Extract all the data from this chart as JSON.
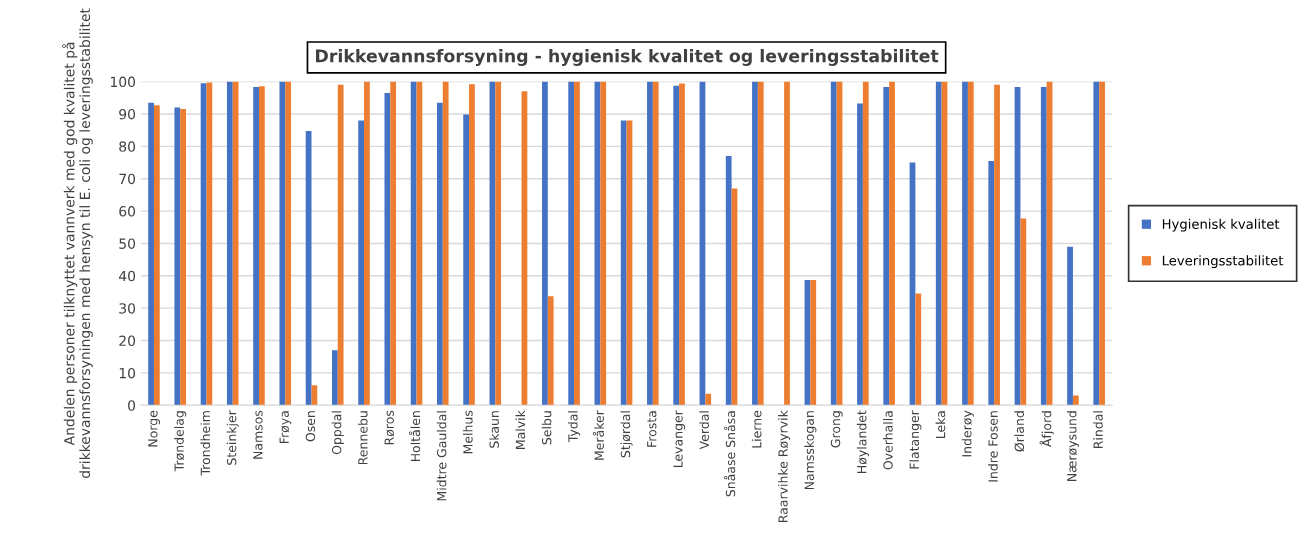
{
  "chart_data": {
    "type": "bar",
    "title": "Drikkevannsforsyning - hygienisk kvalitet og leveringsstabilitet",
    "ylabel": "Andelen personer tilknyttet vannverk med god kvalitet på drikkevannsforsyningen med hensyn til E. coli og leveringsstabilitet",
    "categories": [
      "Norge",
      "Trøndelag",
      "Trondheim",
      "Steinkjer",
      "Namsos",
      "Frøya",
      "Osen",
      "Oppdal",
      "Rennebu",
      "Røros",
      "Holtålen",
      "Midtre Gauldal",
      "Melhus",
      "Skaun",
      "Malvik",
      "Selbu",
      "Tydal",
      "Meråker",
      "Stjørdal",
      "Frosta",
      "Levanger",
      "Verdal",
      "Snåase Snåsa",
      "Lierne",
      "Raarvihke Røyrvik",
      "Namsskogan",
      "Grong",
      "Høylandet",
      "Overhalla",
      "Flatanger",
      "Leka",
      "Inderøy",
      "Indre Fosen",
      "Ørland",
      "Åfjord",
      "Nærøysund",
      "Rindal"
    ],
    "series": [
      {
        "name": "Hygienisk kvalitet",
        "color": "#4472c4",
        "values": [
          93.5,
          92,
          99.5,
          100,
          98.3,
          100,
          84.7,
          17,
          88,
          96.5,
          100,
          93.5,
          89.8,
          100,
          null,
          100,
          100,
          100,
          88,
          100,
          98.7,
          100,
          77,
          100,
          null,
          38.7,
          100,
          93.2,
          98.3,
          75,
          100,
          100,
          75.5,
          98.3,
          98.3,
          49,
          100
        ]
      },
      {
        "name": "Leveringsstabilitet",
        "color": "#ed7d31",
        "values": [
          92.7,
          91.5,
          99.7,
          100,
          98.6,
          100,
          6.2,
          99,
          100,
          100,
          100,
          100,
          99.2,
          100,
          97,
          33.7,
          100,
          100,
          88,
          100,
          99.4,
          3.6,
          67,
          100,
          100,
          38.7,
          100,
          100,
          100,
          34.5,
          100,
          100,
          99,
          57.7,
          100,
          3,
          100
        ]
      }
    ],
    "ylim": [
      0,
      100
    ],
    "yticks": [
      0,
      10,
      20,
      30,
      40,
      50,
      60,
      70,
      80,
      90,
      100
    ],
    "grid": "y",
    "legend": "right"
  }
}
